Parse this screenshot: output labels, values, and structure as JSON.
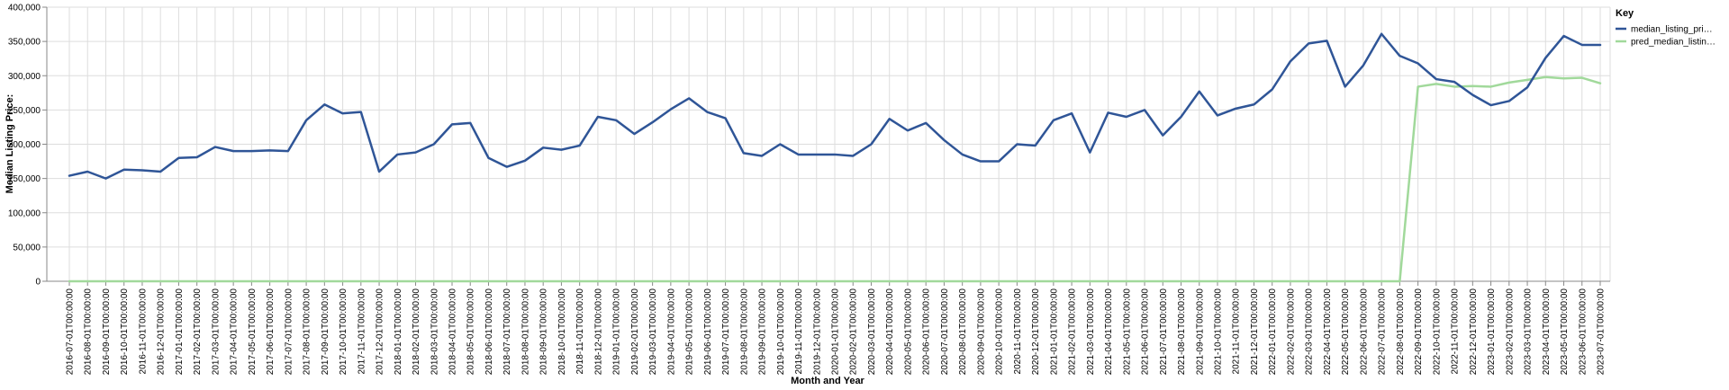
{
  "chart_data": {
    "type": "line",
    "xlabel": "Month and Year",
    "ylabel": "Median Listing Price:",
    "ylim": [
      0,
      400000
    ],
    "yticks": [
      0,
      50000,
      100000,
      150000,
      200000,
      250000,
      300000,
      350000,
      400000
    ],
    "ytick_labels": [
      "0",
      "50,000",
      "100,000",
      "150,000",
      "200,000",
      "250,000",
      "300,000",
      "350,000",
      "400,000"
    ],
    "grid": true,
    "legend": {
      "title": "Key",
      "position": "right"
    },
    "x": [
      "2016-07-01T00:00:00",
      "2016-08-01T00:00:00",
      "2016-09-01T00:00:00",
      "2016-10-01T00:00:00",
      "2016-11-01T00:00:00",
      "2016-12-01T00:00:00",
      "2017-01-01T00:00:00",
      "2017-02-01T00:00:00",
      "2017-03-01T00:00:00",
      "2017-04-01T00:00:00",
      "2017-05-01T00:00:00",
      "2017-06-01T00:00:00",
      "2017-07-01T00:00:00",
      "2017-08-01T00:00:00",
      "2017-09-01T00:00:00",
      "2017-10-01T00:00:00",
      "2017-11-01T00:00:00",
      "2017-12-01T00:00:00",
      "2018-01-01T00:00:00",
      "2018-02-01T00:00:00",
      "2018-03-01T00:00:00",
      "2018-04-01T00:00:00",
      "2018-05-01T00:00:00",
      "2018-06-01T00:00:00",
      "2018-07-01T00:00:00",
      "2018-08-01T00:00:00",
      "2018-09-01T00:00:00",
      "2018-10-01T00:00:00",
      "2018-11-01T00:00:00",
      "2018-12-01T00:00:00",
      "2019-01-01T00:00:00",
      "2019-02-01T00:00:00",
      "2019-03-01T00:00:00",
      "2019-04-01T00:00:00",
      "2019-05-01T00:00:00",
      "2019-06-01T00:00:00",
      "2019-07-01T00:00:00",
      "2019-08-01T00:00:00",
      "2019-09-01T00:00:00",
      "2019-10-01T00:00:00",
      "2019-11-01T00:00:00",
      "2019-12-01T00:00:00",
      "2020-01-01T00:00:00",
      "2020-02-01T00:00:00",
      "2020-03-01T00:00:00",
      "2020-04-01T00:00:00",
      "2020-05-01T00:00:00",
      "2020-06-01T00:00:00",
      "2020-07-01T00:00:00",
      "2020-08-01T00:00:00",
      "2020-09-01T00:00:00",
      "2020-10-01T00:00:00",
      "2020-11-01T00:00:00",
      "2020-12-01T00:00:00",
      "2021-01-01T00:00:00",
      "2021-02-01T00:00:00",
      "2021-03-01T00:00:00",
      "2021-04-01T00:00:00",
      "2021-05-01T00:00:00",
      "2021-06-01T00:00:00",
      "2021-07-01T00:00:00",
      "2021-08-01T00:00:00",
      "2021-09-01T00:00:00",
      "2021-10-01T00:00:00",
      "2021-11-01T00:00:00",
      "2021-12-01T00:00:00",
      "2022-01-01T00:00:00",
      "2022-02-01T00:00:00",
      "2022-03-01T00:00:00",
      "2022-04-01T00:00:00",
      "2022-05-01T00:00:00",
      "2022-06-01T00:00:00",
      "2022-07-01T00:00:00",
      "2022-08-01T00:00:00",
      "2022-09-01T00:00:00",
      "2022-10-01T00:00:00",
      "2022-11-01T00:00:00",
      "2022-12-01T00:00:00",
      "2023-01-01T00:00:00",
      "2023-02-01T00:00:00",
      "2023-03-01T00:00:00",
      "2023-04-01T00:00:00",
      "2023-05-01T00:00:00",
      "2023-06-01T00:00:00",
      "2023-07-01T00:00:00"
    ],
    "series": [
      {
        "name": "median_listing_pri…",
        "color": "#2f5597",
        "values": [
          154000,
          160000,
          150000,
          163000,
          162000,
          160000,
          180000,
          181000,
          196000,
          190000,
          190000,
          191000,
          190000,
          235000,
          258000,
          245000,
          247000,
          160000,
          185000,
          188000,
          200000,
          229000,
          231000,
          180000,
          167000,
          176000,
          195000,
          192000,
          198000,
          240000,
          235000,
          215000,
          232000,
          251000,
          267000,
          247000,
          238000,
          187000,
          183000,
          200000,
          185000,
          185000,
          185000,
          183000,
          200000,
          237000,
          220000,
          231000,
          206000,
          185000,
          175000,
          175000,
          200000,
          198000,
          235000,
          245000,
          188000,
          246000,
          240000,
          250000,
          213000,
          240000,
          277000,
          242000,
          252000,
          258000,
          280000,
          321000,
          347000,
          351000,
          284000,
          315000,
          361000,
          329000,
          318000,
          295000,
          291000,
          272000,
          257000,
          263000,
          283000,
          326000,
          358000,
          345000,
          345000
        ]
      },
      {
        "name": "pred_median_listin…",
        "color": "#a1d99b",
        "values": [
          0,
          0,
          0,
          0,
          0,
          0,
          0,
          0,
          0,
          0,
          0,
          0,
          0,
          0,
          0,
          0,
          0,
          0,
          0,
          0,
          0,
          0,
          0,
          0,
          0,
          0,
          0,
          0,
          0,
          0,
          0,
          0,
          0,
          0,
          0,
          0,
          0,
          0,
          0,
          0,
          0,
          0,
          0,
          0,
          0,
          0,
          0,
          0,
          0,
          0,
          0,
          0,
          0,
          0,
          0,
          0,
          0,
          0,
          0,
          0,
          0,
          0,
          0,
          0,
          0,
          0,
          0,
          0,
          0,
          0,
          0,
          0,
          0,
          0,
          284000,
          288000,
          284000,
          285000,
          284000,
          290000,
          294000,
          298000,
          296000,
          297000,
          289000
        ]
      }
    ]
  }
}
